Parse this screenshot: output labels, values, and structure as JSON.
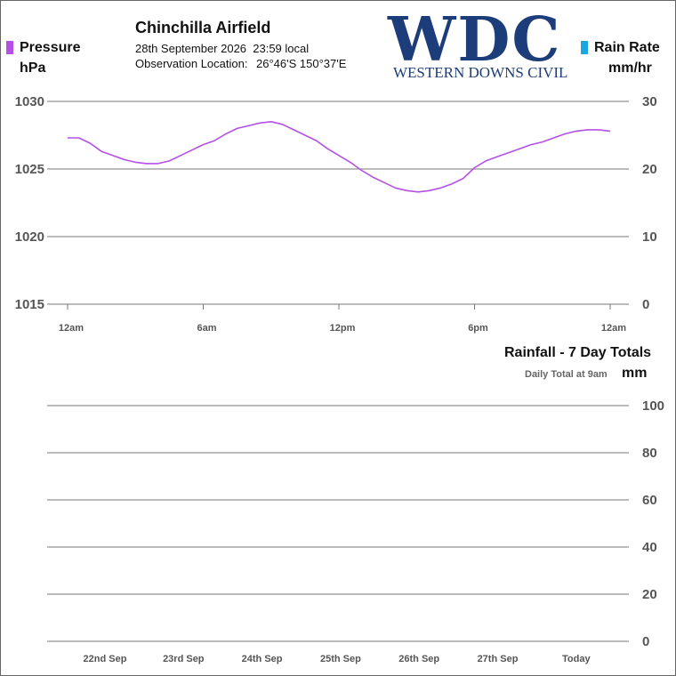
{
  "header": {
    "station": "Chinchilla Airfield",
    "datetime": "28th September 2026  23:59 local",
    "location_label": "Observation Location:",
    "location_value": "26°46'S 150°37'E"
  },
  "logo": {
    "text": "WDC",
    "subtitle": "WESTERN DOWNS CIVIL",
    "color": "#1c3c7a"
  },
  "legend": {
    "left": {
      "name": "Pressure",
      "unit": "hPa",
      "color": "#b450e6"
    },
    "right": {
      "name": "Rain Rate",
      "unit": "mm/hr",
      "color": "#1aa6e0"
    }
  },
  "rainfall_panel": {
    "title": "Rainfall - 7 Day Totals",
    "note": "Daily Total at 9am",
    "unit": "mm"
  },
  "chart_data": [
    {
      "type": "line",
      "series": [
        {
          "name": "Pressure",
          "color": "#b450e6",
          "axis": "left",
          "x": [
            0,
            0.5,
            1.0,
            1.5,
            2.0,
            2.5,
            3.0,
            3.5,
            4.0,
            4.5,
            5.0,
            5.5,
            6.0,
            6.5,
            7.0,
            7.5,
            8.0,
            8.5,
            9.0,
            9.5,
            10.0,
            10.5,
            11.0,
            11.5,
            12.0,
            12.5,
            13.0,
            13.5,
            14.0,
            14.5,
            15.0,
            15.5,
            16.0,
            16.5,
            17.0,
            17.5,
            18.0,
            18.5,
            19.0,
            19.5,
            20.0,
            20.5,
            21.0,
            21.5,
            22.0,
            22.5,
            23.0,
            23.5,
            24.0
          ],
          "values": [
            1027.3,
            1027.3,
            1026.9,
            1026.3,
            1026.0,
            1025.7,
            1025.5,
            1025.4,
            1025.4,
            1025.6,
            1026.0,
            1026.4,
            1026.8,
            1027.1,
            1027.6,
            1028.0,
            1028.2,
            1028.4,
            1028.5,
            1028.3,
            1027.9,
            1027.5,
            1027.1,
            1026.5,
            1026.0,
            1025.5,
            1024.9,
            1024.4,
            1024.0,
            1023.6,
            1023.4,
            1023.3,
            1023.4,
            1023.6,
            1023.9,
            1024.3,
            1025.1,
            1025.6,
            1025.9,
            1026.2,
            1026.5,
            1026.8,
            1027.0,
            1027.3,
            1027.6,
            1027.8,
            1027.9,
            1027.9,
            1027.8
          ]
        },
        {
          "name": "Rain Rate",
          "color": "#1aa6e0",
          "axis": "right",
          "x": [],
          "values": []
        }
      ],
      "x_tick_labels": [
        "12am",
        "6am",
        "12pm",
        "6pm",
        "12am"
      ],
      "x_ticks_hours": [
        0,
        6,
        12,
        18,
        24
      ],
      "xlim": [
        0,
        24
      ],
      "left_axis": {
        "label": "Pressure",
        "unit": "hPa",
        "ylim": [
          1015,
          1030
        ],
        "ticks": [
          1030,
          1025,
          1020,
          1015
        ]
      },
      "right_axis": {
        "label": "Rain Rate",
        "unit": "mm/hr",
        "ylim": [
          0,
          30
        ],
        "ticks": [
          30,
          20,
          10,
          0
        ]
      },
      "grid": true
    },
    {
      "type": "bar",
      "title": "Rainfall - 7 Day Totals",
      "subtitle": "Daily Total at 9am",
      "ylabel": "mm",
      "categories": [
        "22nd Sep",
        "23rd Sep",
        "24th Sep",
        "25th Sep",
        "26th Sep",
        "27th Sep",
        "Today"
      ],
      "values": [
        0,
        0,
        0,
        0,
        0,
        0,
        0
      ],
      "ylim": [
        0,
        100
      ],
      "y_ticks": [
        100,
        80,
        60,
        40,
        20,
        0
      ],
      "grid": true
    }
  ]
}
